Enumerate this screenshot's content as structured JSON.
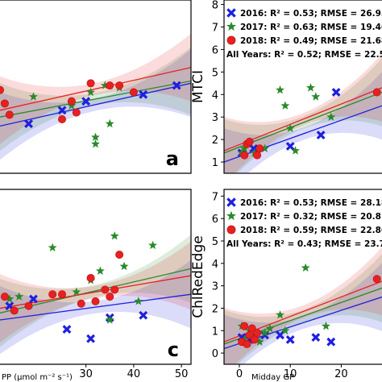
{
  "chart_data": [
    {
      "id": "a",
      "type": "scatter",
      "panel_label": "a",
      "xlim": [
        12,
        52
      ],
      "ylim": [
        0.5,
        8.2
      ],
      "x_ticks": [],
      "y_ticks": [],
      "xlabel": "",
      "ylabel": "",
      "legend": [],
      "series": [
        {
          "year": "2016",
          "color": "#1f1fe0",
          "marker": "x",
          "points": [
            [
              18,
              2.7
            ],
            [
              25,
              3.3
            ],
            [
              30,
              3.7
            ],
            [
              42,
              4.0
            ],
            [
              49,
              4.4
            ]
          ],
          "fit": {
            "x0": 12,
            "y0": 2.6,
            "x1": 52,
            "y1": 4.5
          }
        },
        {
          "year": "2017",
          "color": "#2a8a2a",
          "marker": "star",
          "points": [
            [
              19,
              3.9
            ],
            [
              27,
              3.5
            ],
            [
              31,
              4.1
            ],
            [
              32,
              2.1
            ],
            [
              32,
              1.8
            ],
            [
              34,
              4.4
            ],
            [
              35,
              2.7
            ],
            [
              37,
              4.3
            ]
          ],
          "fit": {
            "x0": 12,
            "y0": 3.0,
            "x1": 52,
            "y1": 4.6
          }
        },
        {
          "year": "2018",
          "color": "#e82020",
          "marker": "circle",
          "points": [
            [
              12,
              4.2
            ],
            [
              13,
              3.6
            ],
            [
              14,
              3.1
            ],
            [
              25,
              2.9
            ],
            [
              27,
              3.7
            ],
            [
              28,
              3.2
            ],
            [
              31,
              4.5
            ],
            [
              35,
              4.4
            ],
            [
              37,
              4.4
            ],
            [
              40,
              4.1
            ]
          ],
          "fit": {
            "x0": 12,
            "y0": 3.3,
            "x1": 52,
            "y1": 5.2
          }
        }
      ]
    },
    {
      "id": "b",
      "type": "scatter",
      "panel_label": "",
      "xlim": [
        -3,
        28
      ],
      "ylim": [
        0.5,
        8.2
      ],
      "x_ticks": [],
      "y_ticks": [
        1,
        2,
        3,
        4,
        5,
        6,
        7,
        8
      ],
      "xlabel": "",
      "ylabel": "MTCI",
      "legend": [
        {
          "marker": "x",
          "color": "#1f1fe0",
          "text": "2016: R² = 0.53; RMSE = 26.95 **"
        },
        {
          "marker": "star",
          "color": "#2a8a2a",
          "text": "2017: R² = 0.63; RMSE = 19.46 **"
        },
        {
          "marker": "circle",
          "color": "#e82020",
          "text": "2018: R² = 0.49; RMSE = 21.68 **"
        }
      ],
      "all_years": "All Years: R² = 0.52; RMSE = 22.53 **",
      "series": [
        {
          "year": "2016",
          "color": "#1f1fe0",
          "marker": "x",
          "points": [
            [
              0.5,
              1.4
            ],
            [
              2.8,
              1.6
            ],
            [
              10,
              1.7
            ],
            [
              16,
              2.2
            ],
            [
              19,
              4.1
            ]
          ],
          "fit": {
            "x0": -3,
            "y0": 1.0,
            "x1": 28,
            "y1": 3.5
          }
        },
        {
          "year": "2017",
          "color": "#2a8a2a",
          "marker": "star",
          "points": [
            [
              0.5,
              1.4
            ],
            [
              1,
              1.6
            ],
            [
              2,
              1.9
            ],
            [
              3,
              1.4
            ],
            [
              5,
              1.6
            ],
            [
              8,
              4.2
            ],
            [
              9,
              3.5
            ],
            [
              10,
              2.5
            ],
            [
              11,
              1.5
            ],
            [
              14,
              4.3
            ],
            [
              15,
              3.9
            ],
            [
              18,
              3.0
            ]
          ],
          "fit": {
            "x0": -3,
            "y0": 1.4,
            "x1": 28,
            "y1": 4.1
          }
        },
        {
          "year": "2018",
          "color": "#e82020",
          "marker": "circle",
          "points": [
            [
              1,
              1.3
            ],
            [
              1.5,
              1.8
            ],
            [
              2,
              1.9
            ],
            [
              3.5,
              1.3
            ],
            [
              4,
              1.6
            ],
            [
              27,
              4.1
            ]
          ],
          "fit": {
            "x0": -3,
            "y0": 1.5,
            "x1": 28,
            "y1": 4.3
          }
        }
      ]
    },
    {
      "id": "c",
      "type": "scatter",
      "panel_label": "c",
      "xlim": [
        12,
        52
      ],
      "ylim": [
        -0.5,
        7
      ],
      "x_ticks": [
        30,
        40,
        50
      ],
      "y_ticks": [],
      "xlabel": "PP (μmol m⁻² s⁻¹)",
      "ylabel": "",
      "legend": [],
      "series": [
        {
          "year": "2016",
          "color": "#1f1fe0",
          "marker": "x",
          "points": [
            [
              14,
              2.0
            ],
            [
              19,
              2.3
            ],
            [
              26,
              1.0
            ],
            [
              31,
              0.6
            ],
            [
              35,
              1.5
            ],
            [
              42,
              1.6
            ]
          ],
          "fit": {
            "x0": 12,
            "y0": 1.4,
            "x1": 52,
            "y1": 2.5
          }
        },
        {
          "year": "2017",
          "color": "#2a8a2a",
          "marker": "star",
          "points": [
            [
              14,
              2.3
            ],
            [
              16,
              2.4
            ],
            [
              23,
              4.5
            ],
            [
              28,
              2.6
            ],
            [
              31,
              3.1
            ],
            [
              33,
              3.5
            ],
            [
              35,
              1.4
            ],
            [
              36,
              5.0
            ],
            [
              38,
              3.7
            ],
            [
              41,
              2.2
            ],
            [
              44,
              4.6
            ]
          ],
          "fit": {
            "x0": 12,
            "y0": 1.7,
            "x1": 52,
            "y1": 3.6
          }
        },
        {
          "year": "2018",
          "color": "#e82020",
          "marker": "circle",
          "points": [
            [
              13,
              2.4
            ],
            [
              15,
              1.8
            ],
            [
              18,
              2.0
            ],
            [
              23,
              2.5
            ],
            [
              25,
              2.5
            ],
            [
              29,
              2.1
            ],
            [
              31,
              3.2
            ],
            [
              32,
              2.2
            ],
            [
              34,
              2.7
            ],
            [
              35,
              2.4
            ],
            [
              36,
              2.7
            ],
            [
              37,
              4.2
            ]
          ],
          "fit": {
            "x0": 12,
            "y0": 1.9,
            "x1": 52,
            "y1": 3.3
          }
        }
      ]
    },
    {
      "id": "d",
      "type": "scatter",
      "panel_label": "",
      "xlim": [
        -3,
        28
      ],
      "ylim": [
        -0.5,
        7.3
      ],
      "x_ticks": [
        0,
        10,
        20
      ],
      "y_ticks": [
        0,
        1,
        2,
        3,
        4,
        5,
        6,
        7
      ],
      "xlabel": "Midday GP",
      "ylabel": "ChlRedEdge",
      "legend": [
        {
          "marker": "x",
          "color": "#1f1fe0",
          "text": "2016: R² = 0.53; RMSE = 28.18 **"
        },
        {
          "marker": "star",
          "color": "#2a8a2a",
          "text": "2017: R² = 0.32; RMSE = 20.81 *"
        },
        {
          "marker": "circle",
          "color": "#e82020",
          "text": "2018: R² = 0.59; RMSE = 22.86 **"
        }
      ],
      "all_years": "All Years: R² = 0.43; RMSE = 23.77 **",
      "series": [
        {
          "year": "2016",
          "color": "#1f1fe0",
          "marker": "x",
          "points": [
            [
              0.5,
              0.7
            ],
            [
              2,
              0.6
            ],
            [
              5,
              0.8
            ],
            [
              8,
              0.8
            ],
            [
              10,
              0.6
            ],
            [
              15,
              0.7
            ],
            [
              18,
              0.5
            ]
          ],
          "fit": {
            "x0": -3,
            "y0": 0.2,
            "x1": 28,
            "y1": 2.5
          }
        },
        {
          "year": "2017",
          "color": "#2a8a2a",
          "marker": "star",
          "points": [
            [
              0.5,
              1.2
            ],
            [
              1,
              0.6
            ],
            [
              2,
              1.0
            ],
            [
              3,
              0.8
            ],
            [
              4,
              0.5
            ],
            [
              5,
              0.9
            ],
            [
              6,
              1.1
            ],
            [
              8,
              1.7
            ],
            [
              9,
              1.0
            ],
            [
              13,
              3.8
            ],
            [
              17,
              1.2
            ]
          ],
          "fit": {
            "x0": -3,
            "y0": 0.4,
            "x1": 28,
            "y1": 2.9
          }
        },
        {
          "year": "2018",
          "color": "#e82020",
          "marker": "circle",
          "points": [
            [
              0.5,
              0.5
            ],
            [
              1,
              1.2
            ],
            [
              1.5,
              0.4
            ],
            [
              2,
              0.8
            ],
            [
              2.5,
              1.1
            ],
            [
              3,
              0.6
            ],
            [
              3.5,
              0.9
            ],
            [
              27,
              3.3
            ]
          ],
          "fit": {
            "x0": -3,
            "y0": 0.5,
            "x1": 28,
            "y1": 3.2
          }
        }
      ]
    }
  ]
}
